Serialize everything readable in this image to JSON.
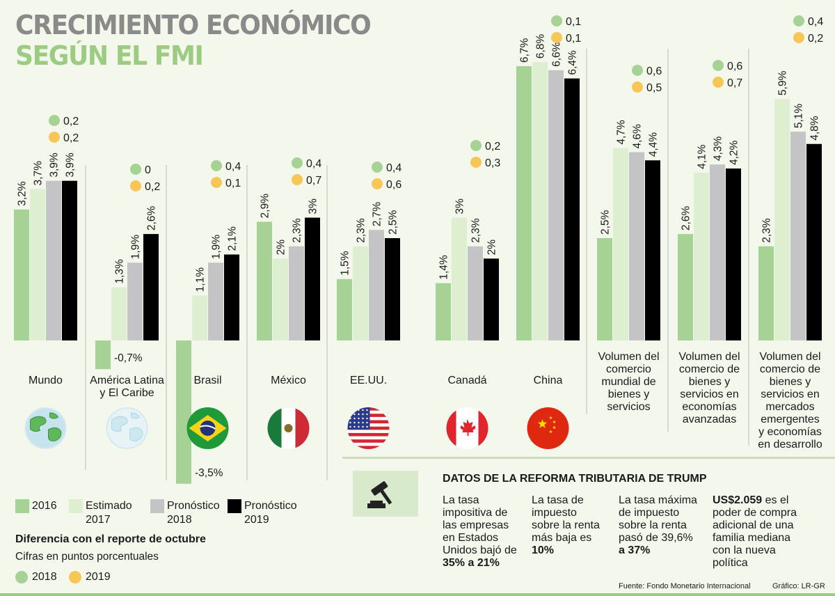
{
  "title": {
    "line1": "CRECIMIENTO ECONÓMICO",
    "line2": "SEGÚN EL FMI"
  },
  "colors": {
    "c2016": "#a6d395",
    "c2017": "#deefd1",
    "c2018": "#c4c3c5",
    "c2019": "#000000",
    "dot2018": "#a6d395",
    "dot2019": "#f6c756"
  },
  "chart_data": {
    "type": "bar",
    "series": [
      {
        "name": "2016",
        "values": [
          3.2,
          -0.7,
          -3.5,
          2.9,
          1.5,
          1.4,
          6.7,
          2.5,
          2.6,
          2.3
        ],
        "labels": [
          "3,2%",
          "-0,7%",
          "-3,5%",
          "2,9%",
          "1,5%",
          "1,4%",
          "6,7%",
          "2,5%",
          "2,6%",
          "2,3%"
        ]
      },
      {
        "name": "Estimado 2017",
        "values": [
          3.7,
          1.3,
          1.1,
          2.0,
          2.3,
          3.0,
          6.8,
          4.7,
          4.1,
          5.9
        ],
        "labels": [
          "3,7%",
          "1,3%",
          "1,1%",
          "2%",
          "2,3%",
          "3%",
          "6,8%",
          "4,7%",
          "4,1%",
          "5,9%"
        ]
      },
      {
        "name": "Pronóstico 2018",
        "values": [
          3.9,
          1.9,
          1.9,
          2.3,
          2.7,
          2.3,
          6.6,
          4.6,
          4.3,
          5.1
        ],
        "labels": [
          "3,9%",
          "1,9%",
          "1,9%",
          "2,3%",
          "2,7%",
          "2,3%",
          "6,6%",
          "4,6%",
          "4,3%",
          "5,1%"
        ]
      },
      {
        "name": "Pronóstico 2019",
        "values": [
          3.9,
          2.6,
          2.1,
          3.0,
          2.5,
          2.0,
          6.4,
          4.4,
          4.2,
          4.8
        ],
        "labels": [
          "3,9%",
          "2,6%",
          "2,1%",
          "3%",
          "2,5%",
          "2%",
          "6,4%",
          "4,4%",
          "4,2%",
          "4,8%"
        ]
      }
    ],
    "categories": [
      [
        "Mundo"
      ],
      [
        "América Latina",
        "y El Caribe"
      ],
      [
        "Brasil"
      ],
      [
        "México"
      ],
      [
        "EE.UU."
      ],
      [
        "Canadá"
      ],
      [
        "China"
      ],
      [
        "Volumen del",
        "comercio",
        "mundial de",
        "bienes y",
        "servicios"
      ],
      [
        "Volumen del",
        "comercio de",
        "bienes y",
        "servicios en",
        "economías",
        "avanzadas"
      ],
      [
        "Volumen del",
        "comercio de",
        "bienes y",
        "servicios en",
        "mercados",
        "emergentes",
        "y economías",
        "en desarrollo"
      ]
    ],
    "diff_2018": [
      "0,2",
      "0",
      "0,4",
      "0,4",
      "0,4",
      "0,2",
      "0,1",
      "0,6",
      "0,6",
      "0,4"
    ],
    "diff_2019": [
      "0,2",
      "0,2",
      "0,1",
      "0,7",
      "0,6",
      "0,3",
      "0,1",
      "0,5",
      "0,7",
      "0,2"
    ],
    "icons": [
      "globe-icon",
      "globe-americas-icon",
      "brazil-flag-icon",
      "mexico-flag-icon",
      "usa-flag-icon",
      "canada-flag-icon",
      "china-flag-icon",
      "",
      "",
      ""
    ]
  },
  "legend": {
    "s2016": "2016",
    "s2017a": "Estimado",
    "s2017b": "2017",
    "s2018a": "Pronóstico",
    "s2018b": "2018",
    "s2019a": "Pronóstico",
    "s2019b": "2019",
    "note_title": "Diferencia con el reporte de octubre",
    "note_sub": "Cifras en puntos porcentuales",
    "d2018": "2018",
    "d2019": "2019"
  },
  "box": {
    "title": "DATOS DE LA REFORMA TRIBUTARIA DE TRUMP",
    "c1": {
      "text": [
        "La tasa",
        "impositiva de",
        "las empresas",
        "en Estados",
        "Unidos bajó de"
      ],
      "bold": "35% a 21%"
    },
    "c2": {
      "text": [
        "La tasa de",
        "impuesto",
        "sobre la renta",
        "más baja es"
      ],
      "bold": "10%"
    },
    "c3": {
      "text": [
        "La tasa máxima",
        "de impuesto",
        "sobre la renta",
        "pasó de 39,6%"
      ],
      "bold": "a 37%"
    },
    "c4": {
      "bold": "US$2.059",
      "first": " es el",
      "text": [
        "poder de compra",
        "adicional de una",
        "familia mediana",
        "con la nueva",
        "política"
      ]
    }
  },
  "footer": {
    "source": "Fuente: Fondo Monetario Internacional",
    "credit": "Gráfico: LR-GR"
  }
}
